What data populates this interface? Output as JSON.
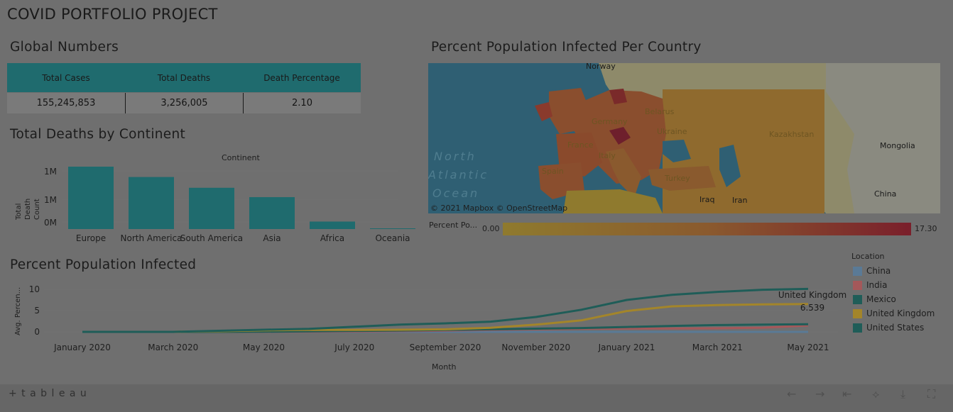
{
  "page": {
    "title": "COVID PORTFOLIO PROJECT"
  },
  "global": {
    "title": "Global Numbers",
    "headers": [
      "Total Cases",
      "Total Deaths",
      "Death Percentage"
    ],
    "values": [
      "155,245,853",
      "3,256,005",
      "2.10"
    ]
  },
  "map": {
    "title": "Percent Population Infected Per Country",
    "labels": [
      "Norway",
      "Belarus",
      "Ukraine",
      "Kazakhstan",
      "Mongolia",
      "Germany",
      "France",
      "Italy",
      "Spain",
      "Turkey",
      "Iraq",
      "Iran",
      "China"
    ],
    "ocean": [
      "North",
      "Atlantic",
      "Ocean"
    ],
    "attribution": "© 2021 Mapbox  © OpenStreetMap",
    "legend_label": "Percent Po...",
    "legend_min": "0.00",
    "legend_max": "17.30",
    "colors": {
      "low": "#8f7a2e",
      "high": "#7a1f2b",
      "water": "#2f5f73",
      "land": "#8f8a6c"
    }
  },
  "deaths_chart_title": "Total Deaths by Continent",
  "line_chart_title": "Percent Population Infected",
  "legend": {
    "title": "Location",
    "items": [
      {
        "name": "China",
        "color": "#5a7a96"
      },
      {
        "name": "India",
        "color": "#a4585a"
      },
      {
        "name": "Mexico",
        "color": "#1f5d58"
      },
      {
        "name": "United Kingdom",
        "color": "#a3852a"
      },
      {
        "name": "United States",
        "color": "#1f5d58"
      }
    ]
  },
  "toolbar": {
    "brand": "+ t a b l e a u"
  },
  "chart_data": [
    {
      "type": "bar",
      "title": "",
      "header": "Continent",
      "ylabel": "Total Death Count",
      "categories": [
        "Europe",
        "North America",
        "South America",
        "Asia",
        "Africa",
        "Oceania"
      ],
      "values": [
        1016750,
        847942,
        672415,
        520286,
        121784,
        1046
      ],
      "ytick_labels": [
        "1M",
        "1M",
        "0M"
      ],
      "color": "#1f6b6e"
    },
    {
      "type": "line",
      "xlabel": "Month",
      "ylabel": "Avg. Percen...",
      "x": [
        "Jan 2020",
        "Feb 2020",
        "Mar 2020",
        "Apr 2020",
        "May 2020",
        "Jun 2020",
        "Jul 2020",
        "Aug 2020",
        "Sep 2020",
        "Oct 2020",
        "Nov 2020",
        "Dec 2020",
        "Jan 2021",
        "Feb 2021",
        "Mar 2021",
        "Apr 2021",
        "May 2021"
      ],
      "xtick_labels": [
        "January 2020",
        "March 2020",
        "May 2020",
        "July 2020",
        "September 2020",
        "November 2020",
        "January 2021",
        "March 2021",
        "May 2021"
      ],
      "ytick_labels": [
        "10",
        "5",
        "0"
      ],
      "ylim": [
        0,
        11
      ],
      "series": [
        {
          "name": "China",
          "color": "#5a7a96",
          "values": [
            0,
            0,
            0.01,
            0.01,
            0.01,
            0.01,
            0.01,
            0.01,
            0.01,
            0.01,
            0.01,
            0.01,
            0.01,
            0.01,
            0.01,
            0.01,
            0.01
          ]
        },
        {
          "name": "India",
          "color": "#a4585a",
          "values": [
            0,
            0,
            0,
            0,
            0.01,
            0.03,
            0.08,
            0.17,
            0.3,
            0.45,
            0.6,
            0.72,
            0.77,
            0.8,
            0.84,
            0.98,
            1.5
          ]
        },
        {
          "name": "Mexico",
          "color": "#1f5d58",
          "values": [
            0,
            0,
            0,
            0.01,
            0.04,
            0.12,
            0.22,
            0.32,
            0.45,
            0.6,
            0.75,
            0.9,
            1.15,
            1.4,
            1.6,
            1.7,
            1.8
          ]
        },
        {
          "name": "United Kingdom",
          "color": "#a3852a",
          "values": [
            0,
            0,
            0.01,
            0.15,
            0.35,
            0.45,
            0.46,
            0.5,
            0.6,
            0.95,
            1.7,
            2.7,
            4.9,
            6.0,
            6.3,
            6.45,
            6.54
          ]
        },
        {
          "name": "United States",
          "color": "#1f5d58",
          "values": [
            0,
            0,
            0.01,
            0.25,
            0.5,
            0.7,
            1.2,
            1.7,
            2.0,
            2.4,
            3.5,
            5.2,
            7.5,
            8.7,
            9.4,
            9.9,
            10.1
          ]
        }
      ],
      "annotation": {
        "series": "United Kingdom",
        "text": "United Kingdom",
        "value": "6.539"
      }
    }
  ]
}
